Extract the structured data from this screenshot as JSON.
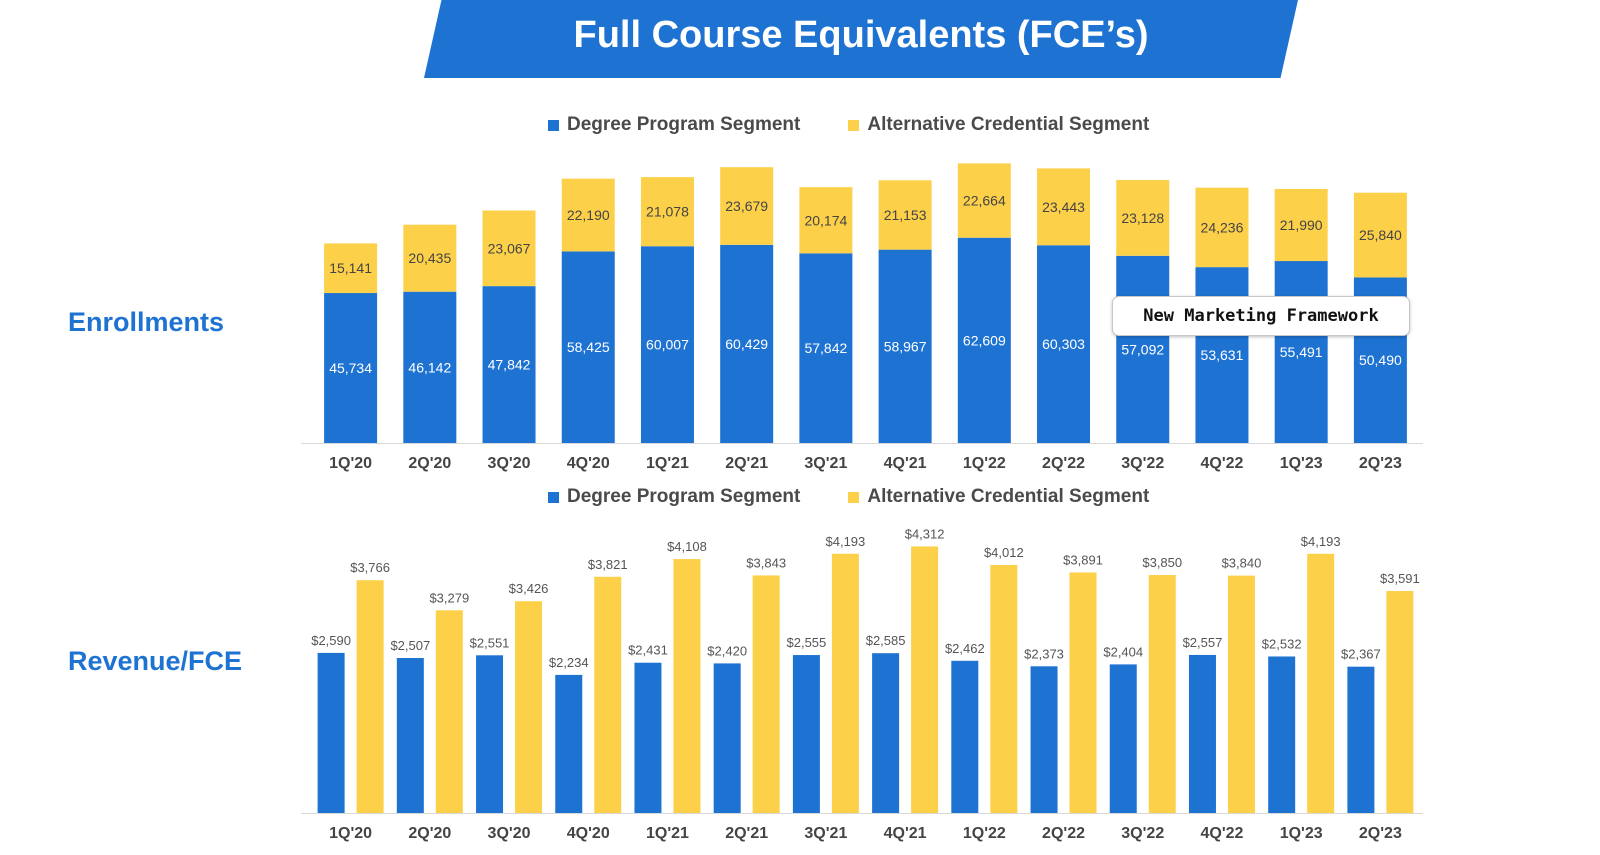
{
  "title": "Full Course Equivalents (FCE’s)",
  "labels": {
    "enrollments": "Enrollments",
    "revenue": "Revenue/FCE"
  },
  "legend": {
    "degree": "Degree Program Segment",
    "alternative": "Alternative Credential Segment"
  },
  "callout": "New Marketing Framework",
  "colors": {
    "blue": "#1e73d2",
    "yellow": "#fdd04a",
    "accent": "#1e73d2"
  },
  "chart_data": [
    {
      "type": "bar",
      "stacked": true,
      "title": "Enrollments",
      "categories": [
        "1Q'20",
        "2Q'20",
        "3Q'20",
        "4Q'20",
        "1Q'21",
        "2Q'21",
        "3Q'21",
        "4Q'21",
        "1Q'22",
        "2Q'22",
        "3Q'22",
        "4Q'22",
        "1Q'23",
        "2Q'23"
      ],
      "series": [
        {
          "name": "Degree Program Segment",
          "values": [
            45734,
            46142,
            47842,
            58425,
            60007,
            60429,
            57842,
            58967,
            62609,
            60303,
            57092,
            53631,
            55491,
            50490
          ],
          "labels": [
            "45,734",
            "46,142",
            "47,842",
            "58,425",
            "60,007",
            "60,429",
            "57,842",
            "58,967",
            "62,609",
            "60,303",
            "57,092",
            "53,631",
            "55,491",
            "50,490"
          ]
        },
        {
          "name": "Alternative Credential Segment",
          "values": [
            15141,
            20435,
            23067,
            22190,
            21078,
            23679,
            20174,
            21153,
            22664,
            23443,
            23128,
            24236,
            21990,
            25840
          ],
          "labels": [
            "15,141",
            "20,435",
            "23,067",
            "22,190",
            "21,078",
            "23,679",
            "20,174",
            "21,153",
            "22,664",
            "23,443",
            "23,128",
            "24,236",
            "21,990",
            "25,840"
          ]
        }
      ],
      "ylim": [
        0,
        86000
      ]
    },
    {
      "type": "bar",
      "stacked": false,
      "title": "Revenue/FCE",
      "categories": [
        "1Q'20",
        "2Q'20",
        "3Q'20",
        "4Q'20",
        "1Q'21",
        "2Q'21",
        "3Q'21",
        "4Q'21",
        "1Q'22",
        "2Q'22",
        "3Q'22",
        "4Q'22",
        "1Q'23",
        "2Q'23"
      ],
      "series": [
        {
          "name": "Degree Program Segment",
          "values": [
            2590,
            2507,
            2551,
            2234,
            2431,
            2420,
            2555,
            2585,
            2462,
            2373,
            2404,
            2557,
            2532,
            2367
          ],
          "labels": [
            "$2,590",
            "$2,507",
            "$2,551",
            "$2,234",
            "$2,431",
            "$2,420",
            "$2,555",
            "$2,585",
            "$2,462",
            "$2,373",
            "$2,404",
            "$2,557",
            "$2,532",
            "$2,367"
          ]
        },
        {
          "name": "Alternative Credential Segment",
          "values": [
            3766,
            3279,
            3426,
            3821,
            4108,
            3843,
            4193,
            4312,
            4012,
            3891,
            3850,
            3840,
            4193,
            3591
          ],
          "labels": [
            "$3,766",
            "$3,279",
            "$3,426",
            "$3,821",
            "$4,108",
            "$3,843",
            "$4,193",
            "$4,312",
            "$4,012",
            "$3,891",
            "$3,850",
            "$3,840",
            "$4,193",
            "$3,591"
          ]
        }
      ],
      "ylim": [
        0,
        4400
      ]
    }
  ]
}
